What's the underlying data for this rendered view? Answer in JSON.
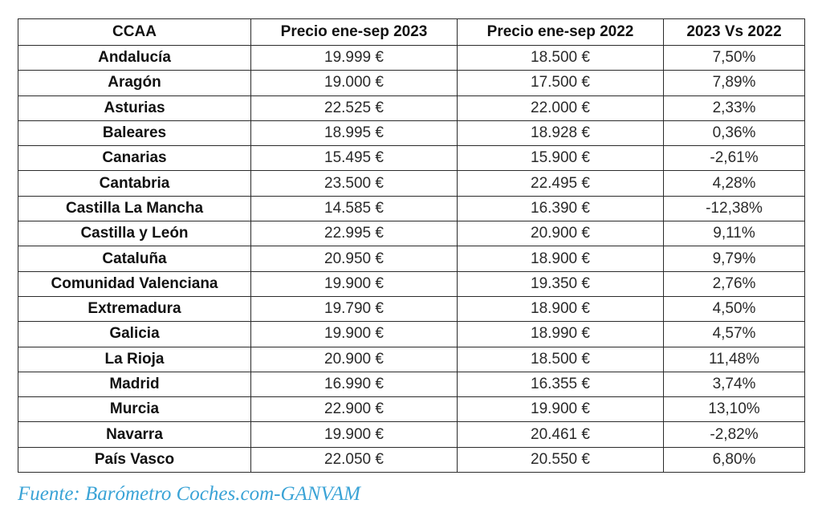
{
  "table": {
    "headers": [
      "CCAA",
      "Precio ene-sep 2023",
      "Precio ene-sep 2022",
      "2023 Vs 2022"
    ],
    "rows": [
      {
        "ccaa": "Andalucía",
        "precio_2023": "19.999 €",
        "precio_2022": "18.500 €",
        "variacion": "7,50%"
      },
      {
        "ccaa": "Aragón",
        "precio_2023": "19.000 €",
        "precio_2022": "17.500 €",
        "variacion": "7,89%"
      },
      {
        "ccaa": "Asturias",
        "precio_2023": "22.525 €",
        "precio_2022": "22.000 €",
        "variacion": "2,33%"
      },
      {
        "ccaa": "Baleares",
        "precio_2023": "18.995 €",
        "precio_2022": "18.928 €",
        "variacion": "0,36%"
      },
      {
        "ccaa": "Canarias",
        "precio_2023": "15.495 €",
        "precio_2022": "15.900 €",
        "variacion": "-2,61%"
      },
      {
        "ccaa": "Cantabria",
        "precio_2023": "23.500 €",
        "precio_2022": "22.495 €",
        "variacion": "4,28%"
      },
      {
        "ccaa": "Castilla La Mancha",
        "precio_2023": "14.585 €",
        "precio_2022": "16.390 €",
        "variacion": "-12,38%"
      },
      {
        "ccaa": "Castilla y León",
        "precio_2023": "22.995 €",
        "precio_2022": "20.900 €",
        "variacion": "9,11%"
      },
      {
        "ccaa": "Cataluña",
        "precio_2023": "20.950 €",
        "precio_2022": "18.900 €",
        "variacion": "9,79%"
      },
      {
        "ccaa": "Comunidad Valenciana",
        "precio_2023": "19.900 €",
        "precio_2022": "19.350 €",
        "variacion": "2,76%"
      },
      {
        "ccaa": "Extremadura",
        "precio_2023": "19.790 €",
        "precio_2022": "18.900 €",
        "variacion": "4,50%"
      },
      {
        "ccaa": "Galicia",
        "precio_2023": "19.900 €",
        "precio_2022": "18.990 €",
        "variacion": "4,57%"
      },
      {
        "ccaa": "La Rioja",
        "precio_2023": "20.900 €",
        "precio_2022": "18.500 €",
        "variacion": "11,48%"
      },
      {
        "ccaa": "Madrid",
        "precio_2023": "16.990 €",
        "precio_2022": "16.355 €",
        "variacion": "3,74%"
      },
      {
        "ccaa": "Murcia",
        "precio_2023": "22.900 €",
        "precio_2022": "19.900 €",
        "variacion": "13,10%"
      },
      {
        "ccaa": "Navarra",
        "precio_2023": "19.900 €",
        "precio_2022": "20.461 €",
        "variacion": "-2,82%"
      },
      {
        "ccaa": "País Vasco",
        "precio_2023": "22.050 €",
        "precio_2022": "20.550 €",
        "variacion": "6,80%"
      }
    ]
  },
  "source": {
    "text": "Fuente: Barómetro Coches.com-GANVAM",
    "color": "#3aa3d6"
  },
  "colors": {
    "border": "#2b2b2b",
    "text": "#1a1a1a",
    "background": "#ffffff"
  }
}
